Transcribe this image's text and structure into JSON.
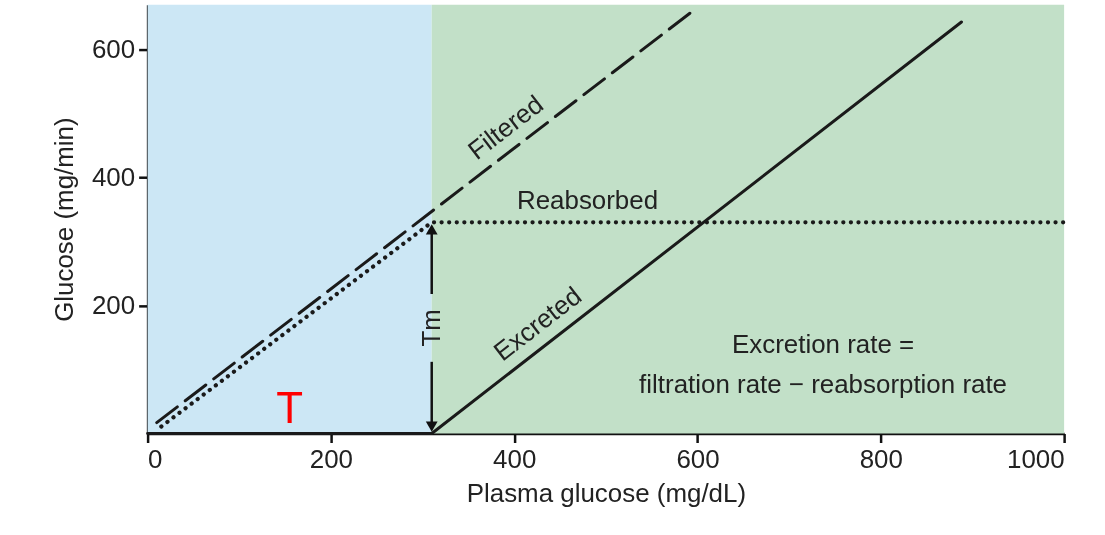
{
  "chart_data": {
    "type": "line",
    "xlabel": "Plasma glucose (mg/dL)",
    "ylabel": "Glucose (mg/min)",
    "xlim": [
      0,
      1000
    ],
    "ylim": [
      0,
      670
    ],
    "xticks": [
      0,
      200,
      400,
      600,
      800,
      1000
    ],
    "yticks": [
      200,
      400,
      600
    ],
    "grid": false,
    "series": [
      {
        "name": "Filtered",
        "color": "#1a1a1a",
        "line_style": "dashed",
        "x": [
          10,
          592
        ],
        "values": [
          17,
          657
        ]
      },
      {
        "name": "Reabsorbed",
        "color": "#1a1a1a",
        "line_style": "dotted",
        "x": [
          15,
          310,
          1000
        ],
        "values": [
          11,
          330,
          330
        ]
      },
      {
        "name": "Excreted",
        "color": "#1a1a1a",
        "line_style": "solid",
        "x": [
          0,
          310,
          888
        ],
        "values": [
          0,
          0,
          643
        ]
      }
    ],
    "bands": [
      {
        "axis": "x",
        "from": 0,
        "to": 310,
        "color": "#cce7f5"
      },
      {
        "axis": "x",
        "from": 310,
        "to": 1000,
        "color": "#c2e0c8"
      }
    ],
    "annotations": [
      {
        "text": "Tm",
        "x": 310,
        "y": 165
      },
      "T",
      "Excretion rate =",
      "filtration rate − reabsorption rate"
    ]
  }
}
